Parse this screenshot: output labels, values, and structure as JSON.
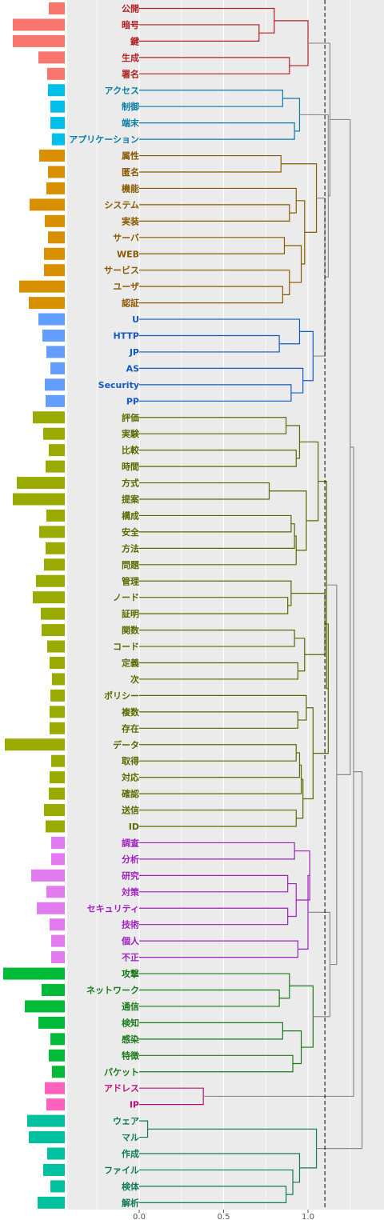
{
  "chart_data": {
    "type": "dendrogram",
    "xlabel": "",
    "ylabel": "",
    "x_ticks": [
      "0.0",
      "0.5",
      "1.0"
    ],
    "xlim": [
      -0.2,
      1.35
    ],
    "threshold": 1.1,
    "grid": true,
    "colors": {
      "c1": "#b22222",
      "c2": "#0a7ea4",
      "c3": "#8b5a00",
      "c4": "#1559c8",
      "c5": "#5a6b00",
      "c6": "#a020c0",
      "c7": "#1a7a1a",
      "c8": "#c0107a",
      "c9": "#107a5a",
      "gray": "#8c8c8c"
    },
    "bar_colors": {
      "c1": "#f8766d",
      "c2": "#00bfe8",
      "c3": "#d89000",
      "c4": "#629dff",
      "c5": "#9aab00",
      "c6": "#e27af0",
      "c7": "#00ba38",
      "c8": "#ff62bc",
      "c9": "#00c19f"
    },
    "leaves": [
      {
        "label": "公開",
        "cluster": "c1",
        "bar": 20
      },
      {
        "label": "暗号",
        "cluster": "c1",
        "bar": 65
      },
      {
        "label": "鍵",
        "cluster": "c1",
        "bar": 65
      },
      {
        "label": "生成",
        "cluster": "c1",
        "bar": 33
      },
      {
        "label": "署名",
        "cluster": "c1",
        "bar": 22
      },
      {
        "label": "アクセス",
        "cluster": "c2",
        "bar": 21
      },
      {
        "label": "制御",
        "cluster": "c2",
        "bar": 18
      },
      {
        "label": "端末",
        "cluster": "c2",
        "bar": 18
      },
      {
        "label": "アプリケーション",
        "cluster": "c2",
        "bar": 16
      },
      {
        "label": "属性",
        "cluster": "c3",
        "bar": 32
      },
      {
        "label": "匿名",
        "cluster": "c3",
        "bar": 21
      },
      {
        "label": "機能",
        "cluster": "c3",
        "bar": 23
      },
      {
        "label": "システム",
        "cluster": "c3",
        "bar": 44
      },
      {
        "label": "実装",
        "cluster": "c3",
        "bar": 25
      },
      {
        "label": "サーバ",
        "cluster": "c3",
        "bar": 21
      },
      {
        "label": "WEB",
        "cluster": "c3",
        "bar": 26
      },
      {
        "label": "サービス",
        "cluster": "c3",
        "bar": 26
      },
      {
        "label": "ユーザ",
        "cluster": "c3",
        "bar": 57
      },
      {
        "label": "認証",
        "cluster": "c3",
        "bar": 45
      },
      {
        "label": "U",
        "cluster": "c4",
        "bar": 33
      },
      {
        "label": "HTTP",
        "cluster": "c4",
        "bar": 28
      },
      {
        "label": "JP",
        "cluster": "c4",
        "bar": 23
      },
      {
        "label": "AS",
        "cluster": "c4",
        "bar": 18
      },
      {
        "label": "Security",
        "cluster": "c4",
        "bar": 25
      },
      {
        "label": "PP",
        "cluster": "c4",
        "bar": 24
      },
      {
        "label": "評価",
        "cluster": "c5",
        "bar": 40
      },
      {
        "label": "実験",
        "cluster": "c5",
        "bar": 27
      },
      {
        "label": "比較",
        "cluster": "c5",
        "bar": 20
      },
      {
        "label": "時間",
        "cluster": "c5",
        "bar": 24
      },
      {
        "label": "方式",
        "cluster": "c5",
        "bar": 60
      },
      {
        "label": "提案",
        "cluster": "c5",
        "bar": 65
      },
      {
        "label": "構成",
        "cluster": "c5",
        "bar": 23
      },
      {
        "label": "安全",
        "cluster": "c5",
        "bar": 32
      },
      {
        "label": "方法",
        "cluster": "c5",
        "bar": 24
      },
      {
        "label": "問題",
        "cluster": "c5",
        "bar": 26
      },
      {
        "label": "管理",
        "cluster": "c5",
        "bar": 36
      },
      {
        "label": "ノード",
        "cluster": "c5",
        "bar": 40
      },
      {
        "label": "証明",
        "cluster": "c5",
        "bar": 30
      },
      {
        "label": "関数",
        "cluster": "c5",
        "bar": 29
      },
      {
        "label": "コード",
        "cluster": "c5",
        "bar": 22
      },
      {
        "label": "定義",
        "cluster": "c5",
        "bar": 19
      },
      {
        "label": "次",
        "cluster": "c5",
        "bar": 16
      },
      {
        "label": "ポリシー",
        "cluster": "c5",
        "bar": 18
      },
      {
        "label": "複数",
        "cluster": "c5",
        "bar": 19
      },
      {
        "label": "存在",
        "cluster": "c5",
        "bar": 19
      },
      {
        "label": "データ",
        "cluster": "c5",
        "bar": 75
      },
      {
        "label": "取得",
        "cluster": "c5",
        "bar": 17
      },
      {
        "label": "対応",
        "cluster": "c5",
        "bar": 19
      },
      {
        "label": "確認",
        "cluster": "c5",
        "bar": 20
      },
      {
        "label": "送信",
        "cluster": "c5",
        "bar": 26
      },
      {
        "label": "ID",
        "cluster": "c5",
        "bar": 24
      },
      {
        "label": "調査",
        "cluster": "c6",
        "bar": 17
      },
      {
        "label": "分析",
        "cluster": "c6",
        "bar": 17
      },
      {
        "label": "研究",
        "cluster": "c6",
        "bar": 42
      },
      {
        "label": "対策",
        "cluster": "c6",
        "bar": 23
      },
      {
        "label": "セキュリティ",
        "cluster": "c6",
        "bar": 35
      },
      {
        "label": "技術",
        "cluster": "c6",
        "bar": 19
      },
      {
        "label": "個人",
        "cluster": "c6",
        "bar": 17
      },
      {
        "label": "不正",
        "cluster": "c6",
        "bar": 17
      },
      {
        "label": "攻撃",
        "cluster": "c7",
        "bar": 77
      },
      {
        "label": "ネットワーク",
        "cluster": "c7",
        "bar": 29
      },
      {
        "label": "通信",
        "cluster": "c7",
        "bar": 50
      },
      {
        "label": "検知",
        "cluster": "c7",
        "bar": 33
      },
      {
        "label": "感染",
        "cluster": "c7",
        "bar": 18
      },
      {
        "label": "特徴",
        "cluster": "c7",
        "bar": 20
      },
      {
        "label": "パケット",
        "cluster": "c7",
        "bar": 16
      },
      {
        "label": "アドレス",
        "cluster": "c8",
        "bar": 25
      },
      {
        "label": "IP",
        "cluster": "c8",
        "bar": 23
      },
      {
        "label": "ウェア",
        "cluster": "c9",
        "bar": 47
      },
      {
        "label": "マル",
        "cluster": "c9",
        "bar": 45
      },
      {
        "label": "作成",
        "cluster": "c9",
        "bar": 22
      },
      {
        "label": "ファイル",
        "cluster": "c9",
        "bar": 27
      },
      {
        "label": "検体",
        "cluster": "c9",
        "bar": 18
      },
      {
        "label": "解析",
        "cluster": "c9",
        "bar": 34
      }
    ],
    "merges": [
      {
        "a": [
          1,
          2
        ],
        "h": 0.71,
        "c": "c1"
      },
      {
        "a": [
          0,
          -1
        ],
        "h": 0.8,
        "c": "c1"
      },
      {
        "a": [
          3,
          4
        ],
        "h": 0.89,
        "c": "c1"
      },
      {
        "a": [
          -2,
          -3
        ],
        "h": 1.0,
        "c": "c1"
      },
      {
        "a": [
          5,
          6
        ],
        "h": 0.85,
        "c": "c2"
      },
      {
        "a": [
          7,
          8
        ],
        "h": 0.92,
        "c": "c2"
      },
      {
        "a": [
          -5,
          -6
        ],
        "h": 0.95,
        "c": "c2"
      },
      {
        "a": [
          12,
          13
        ],
        "h": 0.89,
        "c": "c3"
      },
      {
        "a": [
          11,
          -8
        ],
        "h": 0.93,
        "c": "c3"
      },
      {
        "a": [
          9,
          10
        ],
        "h": 0.84,
        "c": "c3"
      },
      {
        "a": [
          14,
          15
        ],
        "h": 0.86,
        "c": "c3"
      },
      {
        "a": [
          17,
          18
        ],
        "h": 0.85,
        "c": "c3"
      },
      {
        "a": [
          16,
          -12
        ],
        "h": 0.89,
        "c": "c3"
      },
      {
        "a": [
          -11,
          -13
        ],
        "h": 0.96,
        "c": "c3"
      },
      {
        "a": [
          -9,
          -14
        ],
        "h": 0.98,
        "c": "c3"
      },
      {
        "a": [
          -10,
          -15
        ],
        "h": 1.05,
        "c": "c3"
      },
      {
        "a": [
          20,
          21
        ],
        "h": 0.83,
        "c": "c4"
      },
      {
        "a": [
          19,
          -17
        ],
        "h": 0.95,
        "c": "c4"
      },
      {
        "a": [
          23,
          24
        ],
        "h": 0.9,
        "c": "c4"
      },
      {
        "a": [
          22,
          -19
        ],
        "h": 0.97,
        "c": "c4"
      },
      {
        "a": [
          -18,
          -20
        ],
        "h": 1.03,
        "c": "c4"
      },
      {
        "a": [
          25,
          26
        ],
        "h": 0.87,
        "c": "c5"
      },
      {
        "a": [
          27,
          28
        ],
        "h": 0.93,
        "c": "c5"
      },
      {
        "a": [
          -22,
          -23
        ],
        "h": 0.95,
        "c": "c5"
      },
      {
        "a": [
          29,
          30
        ],
        "h": 0.77,
        "c": "c5"
      },
      {
        "a": [
          31,
          32
        ],
        "h": 0.9,
        "c": "c5"
      },
      {
        "a": [
          -26,
          33
        ],
        "h": 0.92,
        "c": "c5"
      },
      {
        "a": [
          -27,
          34
        ],
        "h": 0.93,
        "c": "c5"
      },
      {
        "a": [
          -25,
          -28
        ],
        "h": 0.99,
        "c": "c5"
      },
      {
        "a": [
          -24,
          -29
        ],
        "h": 1.06,
        "c": "c5"
      },
      {
        "a": [
          36,
          37
        ],
        "h": 0.88,
        "c": "c5"
      },
      {
        "a": [
          35,
          -31
        ],
        "h": 0.9,
        "c": "c5"
      },
      {
        "a": [
          38,
          39
        ],
        "h": 0.92,
        "c": "c5"
      },
      {
        "a": [
          40,
          41
        ],
        "h": 0.94,
        "c": "c5"
      },
      {
        "a": [
          -33,
          -34
        ],
        "h": 0.98,
        "c": "c5"
      },
      {
        "a": [
          -32,
          -35
        ],
        "h": 1.1,
        "c": "c5"
      },
      {
        "a": [
          43,
          44
        ],
        "h": 0.94,
        "c": "c5"
      },
      {
        "a": [
          42,
          -37
        ],
        "h": 0.99,
        "c": "c5"
      },
      {
        "a": [
          45,
          46
        ],
        "h": 0.93,
        "c": "c5"
      },
      {
        "a": [
          -39,
          47
        ],
        "h": 0.95,
        "c": "c5"
      },
      {
        "a": [
          -40,
          48
        ],
        "h": 0.96,
        "c": "c5"
      },
      {
        "a": [
          49,
          50
        ],
        "h": 0.93,
        "c": "c5"
      },
      {
        "a": [
          -41,
          -42
        ],
        "h": 0.97,
        "c": "c5"
      },
      {
        "a": [
          -38,
          -43
        ],
        "h": 1.03,
        "c": "c5"
      },
      {
        "a": [
          -36,
          -44
        ],
        "h": 1.12,
        "c": "c5"
      },
      {
        "a": [
          -30,
          -45
        ],
        "h": 1.11,
        "c": "c5"
      },
      {
        "a": [
          53,
          54
        ],
        "h": 0.88,
        "c": "c6"
      },
      {
        "a": [
          55,
          56
        ],
        "h": 0.88,
        "c": "c6"
      },
      {
        "a": [
          -47,
          -48
        ],
        "h": 0.93,
        "c": "c6"
      },
      {
        "a": [
          51,
          52
        ],
        "h": 0.92,
        "c": "c6"
      },
      {
        "a": [
          57,
          58
        ],
        "h": 0.94,
        "c": "c6"
      },
      {
        "a": [
          -50,
          -49
        ],
        "h": 1.01,
        "c": "c6"
      },
      {
        "a": [
          -52,
          -51
        ],
        "h": 1.0,
        "c": "c6"
      },
      {
        "a": [
          60,
          61
        ],
        "h": 0.83,
        "c": "c7"
      },
      {
        "a": [
          59,
          -54
        ],
        "h": 0.89,
        "c": "c7"
      },
      {
        "a": [
          62,
          63
        ],
        "h": 0.85,
        "c": "c7"
      },
      {
        "a": [
          64,
          65
        ],
        "h": 0.91,
        "c": "c7"
      },
      {
        "a": [
          -56,
          -57
        ],
        "h": 0.96,
        "c": "c7"
      },
      {
        "a": [
          -55,
          -58
        ],
        "h": 1.03,
        "c": "c7"
      },
      {
        "a": [
          66,
          67
        ],
        "h": 0.38,
        "c": "c8"
      },
      {
        "a": [
          68,
          69
        ],
        "h": 0.05,
        "c": "c9"
      },
      {
        "a": [
          72,
          73
        ],
        "h": 0.87,
        "c": "c9"
      },
      {
        "a": [
          71,
          -62
        ],
        "h": 0.91,
        "c": "c9"
      },
      {
        "a": [
          70,
          -63
        ],
        "h": 0.95,
        "c": "c9"
      },
      {
        "a": [
          -61,
          -64
        ],
        "h": 1.05,
        "c": "c9"
      },
      {
        "a": [
          -16,
          -21
        ],
        "h": 1.1,
        "c": "gray"
      },
      {
        "a": [
          -7,
          -66
        ],
        "h": 1.12,
        "c": "gray"
      },
      {
        "a": [
          -4,
          -67
        ],
        "h": 1.13,
        "c": "gray"
      },
      {
        "a": [
          -53,
          -59
        ],
        "h": 1.13,
        "c": "gray"
      },
      {
        "a": [
          -46,
          -69
        ],
        "h": 1.17,
        "c": "gray"
      },
      {
        "a": [
          -68,
          -70
        ],
        "h": 1.25,
        "c": "gray"
      },
      {
        "a": [
          -71,
          -60
        ],
        "h": 1.27,
        "c": "gray"
      },
      {
        "a": [
          -72,
          -65
        ],
        "h": 1.32,
        "c": "gray"
      }
    ]
  }
}
